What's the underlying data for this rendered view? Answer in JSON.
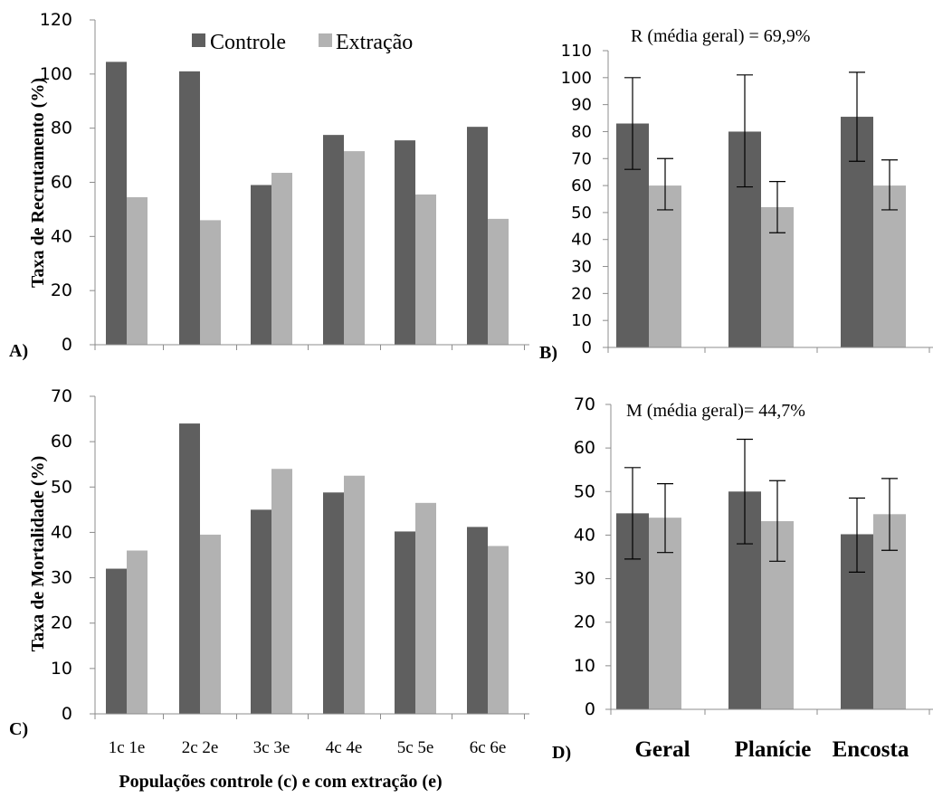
{
  "colors": {
    "controle": "#5f5f5f",
    "extracao": "#b2b2b2",
    "axis": "#8c8c8c",
    "error": "#000000"
  },
  "legend": {
    "controle": "Controle",
    "extracao": "Extração"
  },
  "chart_data": [
    {
      "id": "A",
      "type": "bar",
      "panel_label": "A)",
      "ylabel": "Taxa de Recrutamento (%)",
      "xlabel": "",
      "ylim": [
        0,
        120
      ],
      "yticks": [
        "0",
        "20",
        "40",
        "60",
        "80",
        "100",
        "120"
      ],
      "categories": [
        "1",
        "2",
        "3",
        "4",
        "5",
        "6"
      ],
      "series": [
        {
          "name": "Controle",
          "values": [
            104.5,
            101,
            59,
            77.5,
            75.5,
            80.5
          ]
        },
        {
          "name": "Extração",
          "values": [
            54.5,
            46,
            63.5,
            71.5,
            55.5,
            46.5
          ]
        }
      ],
      "grid": false,
      "legend_position": "top-center"
    },
    {
      "id": "B",
      "type": "bar",
      "panel_label": "B)",
      "annotation": "R (média geral) = 69,9%",
      "ylim": [
        0,
        110
      ],
      "yticks": [
        "0",
        "10",
        "20",
        "30",
        "40",
        "50",
        "60",
        "70",
        "80",
        "90",
        "100",
        "110"
      ],
      "categories": [
        "Geral",
        "Planície",
        "Encosta"
      ],
      "series": [
        {
          "values": [
            83,
            80,
            85.5
          ],
          "err_low": [
            66,
            59.5,
            69
          ],
          "err_high": [
            100,
            101,
            102
          ]
        },
        {
          "values": [
            60,
            52,
            60
          ],
          "err_low": [
            51,
            42.5,
            51
          ],
          "err_high": [
            70,
            61.5,
            69.5
          ]
        }
      ],
      "grid": false
    },
    {
      "id": "C",
      "type": "bar",
      "panel_label": "C)",
      "ylabel": "Taxa de Mortalidade (%)",
      "xlabel": "Populações controle (c) e com extração (e)",
      "ylim": [
        0,
        70
      ],
      "yticks": [
        "0",
        "10",
        "20",
        "30",
        "40",
        "50",
        "60",
        "70"
      ],
      "categories": [
        "1c 1e",
        "2c 2e",
        "3c 3e",
        "4c 4e",
        "5c 5e",
        "6c 6e"
      ],
      "series": [
        {
          "name": "Controle",
          "values": [
            32,
            64,
            45,
            48.8,
            40.2,
            41.2
          ]
        },
        {
          "name": "Extração",
          "values": [
            36,
            39.5,
            54,
            52.5,
            46.5,
            37
          ]
        }
      ],
      "grid": false
    },
    {
      "id": "D",
      "type": "bar",
      "panel_label": "D)",
      "annotation": "M (média geral)= 44,7%",
      "ylim": [
        0,
        70
      ],
      "yticks": [
        "0",
        "10",
        "20",
        "30",
        "40",
        "50",
        "60",
        "70"
      ],
      "categories": [
        "Geral",
        "Planície",
        "Encosta"
      ],
      "series": [
        {
          "values": [
            45,
            50,
            40.2
          ],
          "err_low": [
            34.5,
            38,
            31.5
          ],
          "err_high": [
            55.5,
            62,
            48.5
          ]
        },
        {
          "values": [
            44,
            43.2,
            44.8
          ],
          "err_low": [
            36,
            34,
            36.5
          ],
          "err_high": [
            51.8,
            52.5,
            53
          ]
        }
      ],
      "grid": false
    }
  ]
}
